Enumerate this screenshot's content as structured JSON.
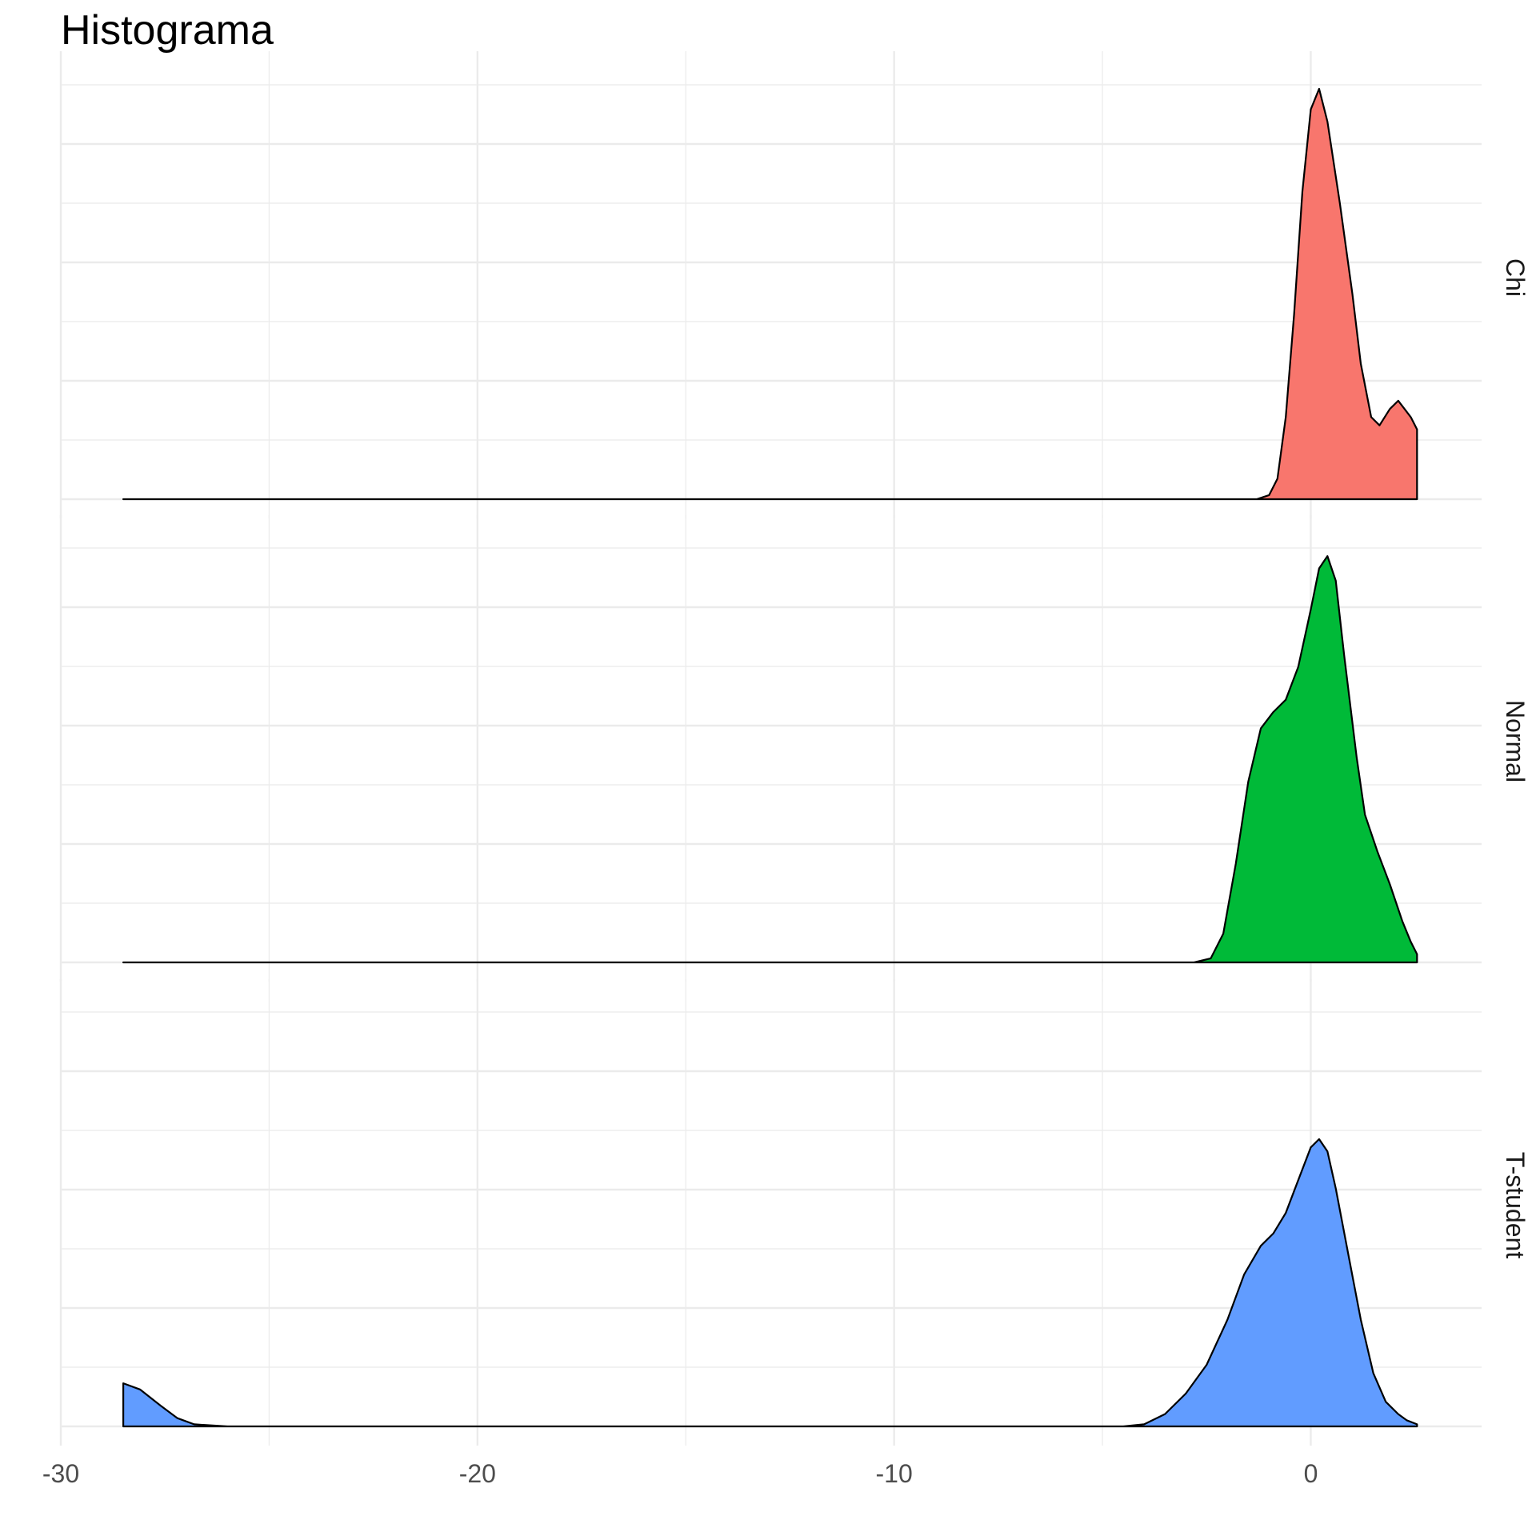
{
  "chart_data": {
    "type": "area",
    "title": "Histograma",
    "xlabel": "",
    "ylabel": "",
    "xlim": [
      -30,
      4.1
    ],
    "x_ticks": [
      -30,
      -20,
      -10,
      0
    ],
    "x_tick_labels": [
      "-30",
      "-20",
      "-10",
      "0"
    ],
    "ylim": [
      0,
      1
    ],
    "grid": true,
    "legend": "none",
    "facet_strip_position": "right",
    "series": [
      {
        "name": "Chi",
        "color": "#F8766D",
        "points": [
          [
            -28.5,
            0
          ],
          [
            -1.3,
            0
          ],
          [
            -1.0,
            0.01
          ],
          [
            -0.8,
            0.05
          ],
          [
            -0.6,
            0.2
          ],
          [
            -0.4,
            0.45
          ],
          [
            -0.2,
            0.75
          ],
          [
            0.0,
            0.95
          ],
          [
            0.2,
            1.0
          ],
          [
            0.4,
            0.92
          ],
          [
            0.7,
            0.72
          ],
          [
            1.0,
            0.5
          ],
          [
            1.2,
            0.33
          ],
          [
            1.45,
            0.2
          ],
          [
            1.65,
            0.18
          ],
          [
            1.9,
            0.22
          ],
          [
            2.1,
            0.24
          ],
          [
            2.4,
            0.2
          ],
          [
            2.55,
            0.17
          ],
          [
            2.55,
            0
          ]
        ]
      },
      {
        "name": "Normal",
        "color": "#00BA38",
        "points": [
          [
            -28.5,
            0
          ],
          [
            -2.8,
            0
          ],
          [
            -2.4,
            0.01
          ],
          [
            -2.1,
            0.07
          ],
          [
            -1.8,
            0.24
          ],
          [
            -1.5,
            0.44
          ],
          [
            -1.2,
            0.57
          ],
          [
            -0.9,
            0.61
          ],
          [
            -0.6,
            0.64
          ],
          [
            -0.3,
            0.72
          ],
          [
            0.0,
            0.86
          ],
          [
            0.2,
            0.96
          ],
          [
            0.4,
            0.99
          ],
          [
            0.6,
            0.93
          ],
          [
            0.8,
            0.75
          ],
          [
            1.1,
            0.5
          ],
          [
            1.3,
            0.36
          ],
          [
            1.6,
            0.27
          ],
          [
            1.9,
            0.19
          ],
          [
            2.2,
            0.1
          ],
          [
            2.4,
            0.05
          ],
          [
            2.55,
            0.02
          ],
          [
            2.55,
            0
          ]
        ]
      },
      {
        "name": "T-student",
        "color": "#619CFF",
        "points": [
          [
            -28.5,
            0
          ],
          [
            -28.5,
            0.105
          ],
          [
            -28.1,
            0.09
          ],
          [
            -27.6,
            0.05
          ],
          [
            -27.2,
            0.02
          ],
          [
            -26.8,
            0.005
          ],
          [
            -26.0,
            0
          ],
          [
            -4.5,
            0
          ],
          [
            -4.0,
            0.005
          ],
          [
            -3.5,
            0.03
          ],
          [
            -3.0,
            0.08
          ],
          [
            -2.5,
            0.15
          ],
          [
            -2.0,
            0.26
          ],
          [
            -1.6,
            0.37
          ],
          [
            -1.2,
            0.44
          ],
          [
            -0.9,
            0.47
          ],
          [
            -0.6,
            0.52
          ],
          [
            -0.3,
            0.6
          ],
          [
            0.0,
            0.68
          ],
          [
            0.2,
            0.7
          ],
          [
            0.4,
            0.67
          ],
          [
            0.6,
            0.58
          ],
          [
            0.9,
            0.42
          ],
          [
            1.2,
            0.26
          ],
          [
            1.5,
            0.13
          ],
          [
            1.8,
            0.06
          ],
          [
            2.1,
            0.03
          ],
          [
            2.3,
            0.015
          ],
          [
            2.55,
            0.005
          ],
          [
            2.55,
            0
          ]
        ]
      }
    ]
  }
}
